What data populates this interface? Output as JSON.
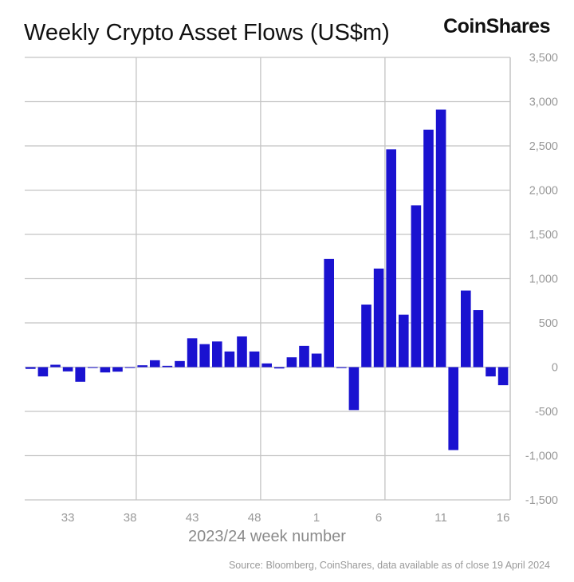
{
  "header": {
    "title": "Weekly Crypto Asset Flows (US$m)",
    "logo_text": "CoinShares"
  },
  "footer": {
    "source": "Source: Bloomberg, CoinShares, data available as of close 19 April 2024"
  },
  "colors": {
    "bar": "#1a12d0",
    "grid": "#c4c4c4",
    "tick_text": "#999999"
  },
  "chart_data": {
    "type": "bar",
    "title": "Weekly Crypto Asset Flows (US$m)",
    "xlabel": "2023/24 week number",
    "ylabel": "",
    "ylim": [
      -1500,
      3500
    ],
    "yticks": [
      3500,
      3000,
      2500,
      2000,
      1500,
      1000,
      500,
      0,
      -500,
      -1000,
      -1500
    ],
    "ytick_labels": [
      "3,500",
      "3,000",
      "2,500",
      "2,000",
      "1,500",
      "1,000",
      "500",
      "0",
      "-500",
      "-1,000",
      "-1,500"
    ],
    "y_axis_side": "right",
    "xtick_labels": [
      "33",
      "38",
      "43",
      "48",
      "1",
      "6",
      "11",
      "16"
    ],
    "grid": true,
    "categories": [
      "30",
      "31",
      "32",
      "33",
      "34",
      "35",
      "36",
      "37",
      "38",
      "39",
      "40",
      "41",
      "42",
      "43",
      "44",
      "45",
      "46",
      "47",
      "48",
      "49",
      "50",
      "51",
      "52",
      "1",
      "2",
      "3",
      "4",
      "5",
      "6",
      "7",
      "8",
      "9",
      "10",
      "11",
      "12",
      "13",
      "14",
      "15",
      "16"
    ],
    "values": [
      -20,
      -105,
      27,
      -48,
      -165,
      0,
      -60,
      -51,
      -5,
      21,
      78,
      15,
      69,
      326,
      260,
      290,
      177,
      347,
      177,
      42,
      -15,
      111,
      240,
      153,
      1222,
      -10,
      -485,
      707,
      1114,
      2461,
      593,
      1829,
      2683,
      2910,
      -937,
      865,
      644,
      -105,
      -204
    ]
  }
}
